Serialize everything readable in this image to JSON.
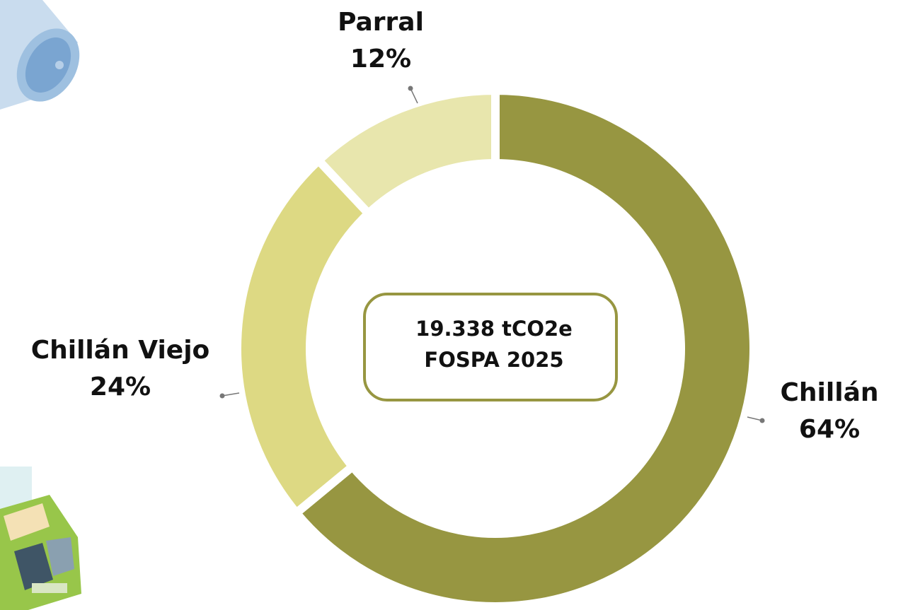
{
  "chart_data": {
    "type": "donut",
    "categories": [
      "Chillán",
      "Chillán Viejo",
      "Parral"
    ],
    "values": [
      64,
      24,
      12
    ],
    "value_labels": [
      "64%",
      "24%",
      "12%"
    ],
    "colors": [
      "#979641",
      "#ddd983",
      "#e8e6ad"
    ],
    "center_text": [
      "19.338 tCO2e",
      "FOSPA 2025"
    ]
  }
}
